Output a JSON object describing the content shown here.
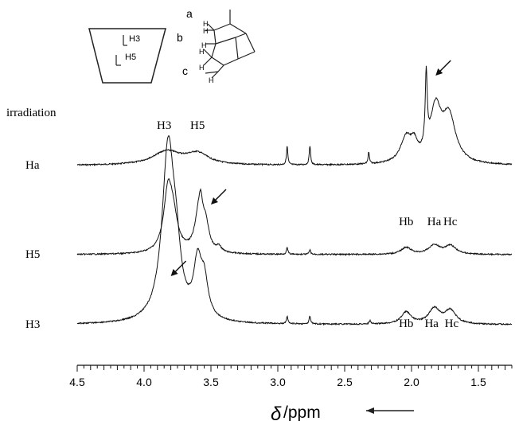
{
  "chart_data": {
    "type": "line",
    "title": "",
    "xlabel_symbol": "δ",
    "xlabel_unit": "/ppm",
    "x_reversed": true,
    "xlim": [
      4.5,
      1.25
    ],
    "x_ticks": [
      "4.5",
      "4.0",
      "3.5",
      "3.0",
      "2.5",
      "2.0",
      "1.5"
    ],
    "grid": false,
    "row_header": "irradiation",
    "series": [
      {
        "name": "Ha",
        "peaks": [
          {
            "x": 3.83,
            "height": 0.38,
            "width": 0.13
          },
          {
            "x": 3.6,
            "height": 0.3,
            "width": 0.1
          },
          {
            "x": 2.93,
            "height": 0.52,
            "width": 0.006
          },
          {
            "x": 2.76,
            "height": 0.55,
            "width": 0.006
          },
          {
            "x": 2.32,
            "height": 0.32,
            "width": 0.006
          },
          {
            "x": 2.04,
            "height": 0.7,
            "width": 0.05
          },
          {
            "x": 1.98,
            "height": 0.4,
            "width": 0.03
          },
          {
            "x": 1.89,
            "height": 2.05,
            "width": 0.009
          },
          {
            "x": 1.82,
            "height": 1.45,
            "width": 0.05
          },
          {
            "x": 1.72,
            "height": 1.28,
            "width": 0.06
          }
        ],
        "peak_labels": [
          {
            "text": "H3",
            "x": 3.85
          },
          {
            "text": "H5",
            "x": 3.6
          }
        ],
        "arrow_at": 1.82
      },
      {
        "name": "H5",
        "peaks": [
          {
            "x": 3.82,
            "height": 1.7,
            "width": 0.04
          },
          {
            "x": 3.78,
            "height": 0.7,
            "width": 0.04
          },
          {
            "x": 3.59,
            "height": 1.1,
            "width": 0.035
          },
          {
            "x": 3.575,
            "height": 0.5,
            "width": 0.015
          },
          {
            "x": 3.54,
            "height": 0.7,
            "width": 0.03
          },
          {
            "x": 3.44,
            "height": 0.15,
            "width": 0.02
          },
          {
            "x": 2.93,
            "height": 0.18,
            "width": 0.007
          },
          {
            "x": 2.76,
            "height": 0.12,
            "width": 0.007
          },
          {
            "x": 2.04,
            "height": 0.19,
            "width": 0.045
          },
          {
            "x": 1.83,
            "height": 0.25,
            "width": 0.05
          },
          {
            "x": 1.71,
            "height": 0.24,
            "width": 0.05
          }
        ],
        "peak_labels": [
          {
            "text": "Hb",
            "x": 2.04
          },
          {
            "text": "Ha",
            "x": 1.83
          },
          {
            "text": "Hc",
            "x": 1.71
          }
        ],
        "arrow_at": 3.5
      },
      {
        "name": "H3",
        "peaks": [
          {
            "x": 3.82,
            "height": 3.2,
            "width": 0.055
          },
          {
            "x": 3.76,
            "height": 0.8,
            "width": 0.04
          },
          {
            "x": 3.6,
            "height": 0.95,
            "width": 0.035
          },
          {
            "x": 3.55,
            "height": 0.65,
            "width": 0.035
          },
          {
            "x": 2.93,
            "height": 0.13,
            "width": 0.007
          },
          {
            "x": 2.76,
            "height": 0.14,
            "width": 0.007
          },
          {
            "x": 2.31,
            "height": 0.06,
            "width": 0.007
          },
          {
            "x": 2.04,
            "height": 0.22,
            "width": 0.045
          },
          {
            "x": 1.83,
            "height": 0.28,
            "width": 0.05
          },
          {
            "x": 1.71,
            "height": 0.25,
            "width": 0.05
          }
        ],
        "peak_labels": [
          {
            "text": "Hb",
            "x": 2.04
          },
          {
            "text": "Ha",
            "x": 1.85
          },
          {
            "text": "Hc",
            "x": 1.7
          }
        ],
        "arrow_at": 3.8
      }
    ],
    "inset": {
      "cyclodextrin_labels": [
        "H3",
        "H5"
      ],
      "adamantane_labels": [
        "a",
        "b",
        "c"
      ],
      "atom_label": "H"
    }
  }
}
